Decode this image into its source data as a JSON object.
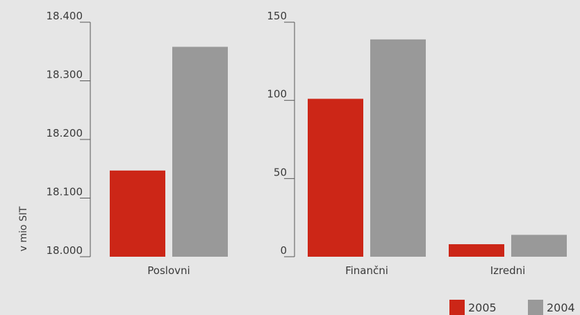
{
  "chart_data": [
    {
      "type": "bar",
      "categories": [
        "Poslovni"
      ],
      "series": [
        {
          "name": "2005",
          "values": [
            18147
          ]
        },
        {
          "name": "2004",
          "values": [
            18358
          ]
        }
      ],
      "ylabel": "v mio SIT",
      "ylim": [
        18000,
        18400
      ],
      "yticks": [
        "18.000",
        "18.100",
        "18.200",
        "18.300",
        "18.400"
      ],
      "grid": false
    },
    {
      "type": "bar",
      "categories": [
        "Finančni",
        "Izredni"
      ],
      "series": [
        {
          "name": "2005",
          "values": [
            101,
            8
          ]
        },
        {
          "name": "2004",
          "values": [
            139,
            14
          ]
        }
      ],
      "ylim": [
        0,
        150
      ],
      "yticks": [
        "0",
        "50",
        "100",
        "150"
      ],
      "grid": false
    }
  ],
  "legend": {
    "placement": "bottom-right",
    "items": [
      {
        "label": "2005",
        "color": "#cc2617"
      },
      {
        "label": "2004",
        "color": "#999999"
      }
    ]
  }
}
